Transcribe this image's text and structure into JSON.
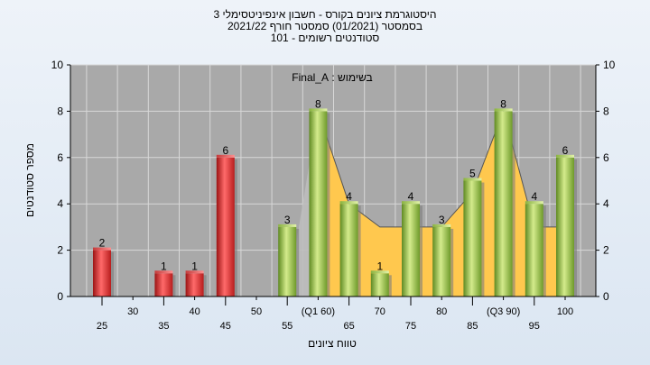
{
  "chart_data": {
    "type": "bar",
    "title_lines": [
      "היסטוגרמת ציונים בקורס - חשבון אינפיניטסימלי 3",
      "בסמסטר  (01/2021)  סמסטר חורף 2021/22",
      "סטודנטים רשומים - 101"
    ],
    "subtitle": "בשימוש : Final_A",
    "xlabel": "טווח ציונים",
    "ylabel": "מספר סטודנטים",
    "ylim": [
      0,
      10
    ],
    "yticks": [
      0,
      2,
      4,
      6,
      8,
      10
    ],
    "grid": true,
    "categories": [
      "25",
      "30",
      "35",
      "40",
      "45",
      "50",
      "55",
      "(Q1 60)",
      "65",
      "70",
      "75",
      "80",
      "85",
      "(Q3 90)",
      "95",
      "100"
    ],
    "values": [
      2,
      0,
      1,
      1,
      6,
      0,
      3,
      8,
      4,
      1,
      4,
      3,
      5,
      8,
      4,
      6
    ],
    "bar_colors": [
      "red",
      "red",
      "red",
      "red",
      "red",
      "red",
      "green",
      "green",
      "green",
      "green",
      "green",
      "green",
      "green",
      "green",
      "green",
      "green"
    ],
    "area_points": [
      {
        "x": "55",
        "y": 0
      },
      {
        "x": "(Q1 60)",
        "y": 8
      },
      {
        "x": "65",
        "y": 4
      },
      {
        "x": "70",
        "y": 3
      },
      {
        "x": "75",
        "y": 3
      },
      {
        "x": "80",
        "y": 3
      },
      {
        "x": "85",
        "y": 4.5
      },
      {
        "x": "(Q3 90)",
        "y": 8
      },
      {
        "x": "95",
        "y": 3
      },
      {
        "x": "100",
        "y": 3
      }
    ],
    "colors": {
      "red": "#e03535",
      "green": "#9cc04f",
      "area": "#ffc84e",
      "shade": "#bdbdbd",
      "plot_bg": "#a9a9a9"
    }
  }
}
